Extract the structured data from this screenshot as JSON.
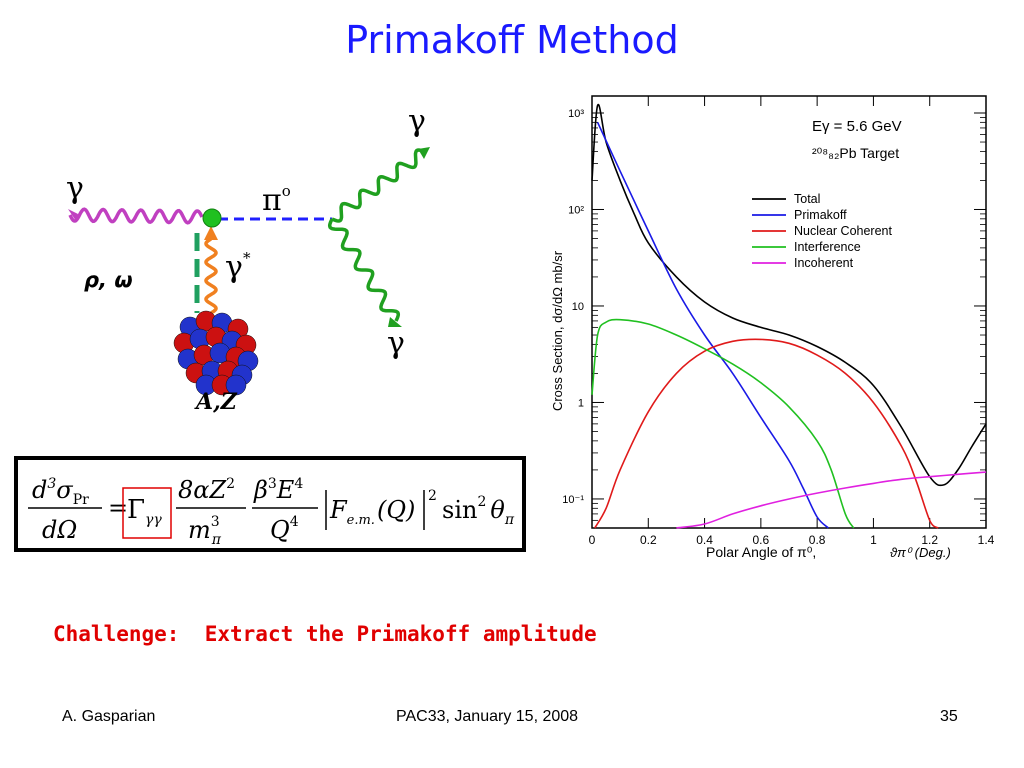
{
  "slide": {
    "title": "Primakoff Method",
    "challenge_label": "Challenge:",
    "challenge_text": "Extract the Primakoff amplitude",
    "footer": {
      "author": "A. Gasparian",
      "event": "PAC33, January 15, 2008",
      "page": "35"
    }
  },
  "diagram": {
    "gamma_in": "γ",
    "pi0": "π",
    "pi0_sup": "o",
    "gamma_virtual": "γ",
    "gamma_virtual_sup": "*",
    "gamma_out_top": "γ",
    "gamma_out_bottom": "γ",
    "exchange": "ρ, ω",
    "nucleus": "A,Z",
    "colors": {
      "photon_in": "#c040c0",
      "photon_virtual": "#f08020",
      "photon_out": "#20a020",
      "pion": "#2020ff",
      "exchange": "#20a060",
      "vertex": "#20c020"
    }
  },
  "formula": {
    "d3sigma": "d",
    "d3sigma_exp": "3",
    "sigma": "σ",
    "sigma_sub": "Pr",
    "dOmega": "dΩ",
    "equals": "=",
    "Gamma": "Γ",
    "Gamma_sub": "γγ",
    "n1_a": "8αZ",
    "n1_exp": "2",
    "d1": "m",
    "d1_exp": "3",
    "d1_sub": "π",
    "n2_a": "β",
    "n2_exp": "3",
    "n2_b": "E",
    "n2_b_exp": "4",
    "d2": "Q",
    "d2_exp": "4",
    "ff": "F",
    "ff_sub": "e.m.",
    "ff_arg": "(Q)",
    "ff_exp": "2",
    "sin": "sin",
    "sin_exp": "2",
    "theta": "θ",
    "theta_sub": "π"
  },
  "chart_data": {
    "type": "line",
    "title": "",
    "xlabel": "Polar Angle of π⁰,",
    "xlabel_extra": "ϑπ⁰ (Deg.)",
    "ylabel": "Cross Section,  dσ/dΩ   mb/sr",
    "xlim": [
      0,
      1.4
    ],
    "ylim": [
      0.05,
      1500
    ],
    "yscale": "log",
    "x_ticks": [
      "0",
      "0.2",
      "0.4",
      "0.6",
      "0.8",
      "1",
      "1.2",
      "1.4"
    ],
    "y_ticks": [
      "10⁻¹",
      "1",
      "10",
      "10²",
      "10³"
    ],
    "annotations": [
      "Eγ = 5.6 GeV",
      "²⁰⁸₈₂Pb Target"
    ],
    "legend_position": "top-right",
    "series": [
      {
        "name": "Total",
        "color": "#000000",
        "x": [
          0.0,
          0.02,
          0.05,
          0.1,
          0.15,
          0.2,
          0.3,
          0.4,
          0.5,
          0.6,
          0.7,
          0.8,
          0.9,
          1.0,
          1.1,
          1.2,
          1.25,
          1.3,
          1.35,
          1.4
        ],
        "y": [
          200,
          1200,
          500,
          200,
          90,
          45,
          20,
          11,
          7.5,
          6,
          5,
          3.8,
          2.6,
          1.5,
          0.55,
          0.17,
          0.14,
          0.2,
          0.35,
          0.6
        ]
      },
      {
        "name": "Primakoff",
        "color": "#1a1ae6",
        "x": [
          0.02,
          0.1,
          0.2,
          0.3,
          0.4,
          0.5,
          0.6,
          0.7,
          0.75,
          0.8,
          0.84
        ],
        "y": [
          800,
          250,
          60,
          15,
          5,
          2,
          0.7,
          0.25,
          0.13,
          0.065,
          0.04
        ]
      },
      {
        "name": "Nuclear Coherent",
        "color": "#e01a1a",
        "x": [
          0.01,
          0.05,
          0.1,
          0.2,
          0.3,
          0.4,
          0.5,
          0.6,
          0.7,
          0.8,
          0.9,
          1.0,
          1.1,
          1.15,
          1.2,
          1.23
        ],
        "y": [
          0.04,
          0.08,
          0.2,
          0.8,
          2,
          3.4,
          4.3,
          4.5,
          4.1,
          3.1,
          2.0,
          1.0,
          0.35,
          0.16,
          0.06,
          0.04
        ]
      },
      {
        "name": "Interference",
        "color": "#20c020",
        "x": [
          0.0,
          0.02,
          0.05,
          0.1,
          0.2,
          0.3,
          0.4,
          0.5,
          0.6,
          0.7,
          0.8,
          0.85,
          0.9,
          0.93
        ],
        "y": [
          1.2,
          5,
          6.8,
          7.2,
          6.5,
          5,
          3.6,
          2.5,
          1.6,
          0.9,
          0.4,
          0.2,
          0.07,
          0.04
        ]
      },
      {
        "name": "Incoherent",
        "color": "#e020e0",
        "x": [
          0.3,
          0.4,
          0.5,
          0.6,
          0.7,
          0.8,
          0.9,
          1.0,
          1.1,
          1.2,
          1.3,
          1.4
        ],
        "y": [
          0.04,
          0.055,
          0.07,
          0.085,
          0.1,
          0.115,
          0.13,
          0.145,
          0.16,
          0.17,
          0.18,
          0.19
        ]
      }
    ]
  }
}
